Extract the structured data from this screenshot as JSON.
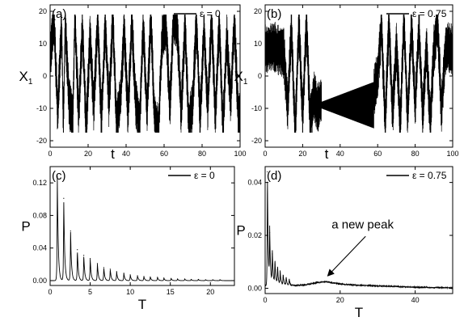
{
  "chart_data": [
    {
      "panel_label": "(a)",
      "type": "line",
      "xlabel": "t",
      "ylabel": "X",
      "ylabel_sub": "1",
      "xlim": [
        0,
        100
      ],
      "ylim": [
        -22,
        22
      ],
      "xticks": [
        0,
        20,
        40,
        60,
        80,
        100
      ],
      "yticks": [
        -20,
        -10,
        0,
        10,
        20
      ],
      "legend": {
        "label": "ε = 0",
        "position": "top-right"
      },
      "series": [
        {
          "description_values": "chaotic switching between upper (~+15) and lower (~-8) wings",
          "x": [
            0,
            2,
            4,
            6,
            7,
            8,
            10,
            12,
            13,
            15,
            17,
            19,
            21,
            23,
            25,
            27,
            29,
            31,
            33,
            35,
            37,
            39,
            41,
            43,
            45,
            47,
            49,
            51,
            53,
            55,
            57,
            59,
            61,
            63,
            65,
            67,
            69,
            71,
            73,
            75,
            77,
            79,
            81,
            83,
            85,
            87,
            89,
            91,
            93,
            95,
            97,
            99,
            100
          ],
          "y": [
            5,
            18,
            -12,
            16,
            -15,
            17,
            -8,
            -14,
            18,
            -12,
            15,
            -16,
            12,
            -10,
            17,
            -14,
            16,
            -9,
            18,
            -15,
            -7,
            14,
            -12,
            17,
            -8,
            -16,
            15,
            -11,
            18,
            -13,
            -17,
            12,
            16,
            -10,
            18,
            14,
            -12,
            16,
            -15,
            -9,
            17,
            -14,
            15,
            -10,
            18,
            -13,
            16,
            -16,
            12,
            -8,
            17,
            -12,
            -14
          ]
        }
      ]
    },
    {
      "panel_label": "(b)",
      "type": "line",
      "xlabel": "t",
      "ylabel": "X",
      "ylabel_sub": "1",
      "xlim": [
        0,
        100
      ],
      "ylim": [
        -22,
        22
      ],
      "xticks": [
        0,
        20,
        40,
        60,
        80,
        100
      ],
      "yticks": [
        -20,
        -10,
        0,
        10,
        20
      ],
      "legend": {
        "label": "ε = 0.75",
        "position": "top-right"
      },
      "series": [
        {
          "x": [
            0,
            5,
            10,
            12,
            14,
            16,
            18,
            20,
            22,
            24,
            26,
            28,
            30,
            32,
            35,
            40,
            45,
            50,
            55,
            58,
            60,
            62,
            64,
            66,
            68,
            70,
            72,
            74,
            76,
            78,
            80,
            82,
            84,
            86,
            88,
            90,
            92,
            94,
            96,
            98,
            100
          ],
          "y": [
            8,
            9,
            7,
            -10,
            15,
            -18,
            16,
            -12,
            17,
            -14,
            -6,
            -10,
            -8,
            -9,
            -9,
            -9,
            -9,
            -8,
            -7,
            -5,
            0,
            15,
            -14,
            16,
            -12,
            10,
            -15,
            17,
            -13,
            16,
            -10,
            15,
            -12,
            9,
            -14,
            8,
            17,
            -11,
            8,
            9,
            8
          ]
        }
      ]
    },
    {
      "panel_label": "(c)",
      "type": "line",
      "xlabel": "T",
      "ylabel": "P",
      "xlim": [
        0,
        23
      ],
      "ylim": [
        -0.006,
        0.14
      ],
      "xticks": [
        0,
        5,
        10,
        15,
        20
      ],
      "yticks": [
        0.0,
        0.04,
        0.08,
        0.12
      ],
      "ytick_labels": [
        "0.00",
        "0.04",
        "0.08",
        "0.12"
      ],
      "legend": {
        "label": "ε = 0",
        "position": "top-right"
      },
      "peaks": {
        "x": [
          0.9,
          1.7,
          2.55,
          3.4,
          4.2,
          5.0,
          5.9,
          6.7,
          7.5,
          8.3,
          9.2,
          10.0,
          10.9,
          11.7,
          12.5,
          13.4,
          14.2,
          15.1,
          15.9,
          16.8,
          17.6,
          18.5,
          19.4,
          20.3,
          21.2
        ],
        "y": [
          0.128,
          0.101,
          0.061,
          0.038,
          0.031,
          0.027,
          0.021,
          0.016,
          0.014,
          0.011,
          0.009,
          0.007,
          0.006,
          0.005,
          0.0045,
          0.004,
          0.003,
          0.0025,
          0.002,
          0.002,
          0.0015,
          0.0015,
          0.001,
          0.001,
          0.001
        ]
      }
    },
    {
      "panel_label": "(d)",
      "type": "line",
      "xlabel": "T",
      "ylabel": "P",
      "xlim": [
        0,
        50
      ],
      "ylim": [
        -0.002,
        0.046
      ],
      "xticks": [
        0,
        20,
        40
      ],
      "yticks": [
        0.0,
        0.02,
        0.04
      ],
      "ytick_labels": [
        "0.00",
        "0.02",
        "0.04"
      ],
      "legend": {
        "label": "ε = 0.75",
        "position": "top-right"
      },
      "annotation": {
        "text": "a new peak",
        "x": 16,
        "y": 0.0025
      },
      "peaks": {
        "x": [
          0.6,
          1.2,
          1.9,
          2.6,
          3.3,
          4.0,
          4.8,
          5.6,
          6.4
        ],
        "y": [
          0.044,
          0.021,
          0.013,
          0.009,
          0.007,
          0.005,
          0.004,
          0.003,
          0.0025
        ]
      },
      "baseline": {
        "x": [
          0,
          2,
          4,
          6,
          8,
          10,
          12,
          14,
          16,
          18,
          20,
          24,
          28,
          32,
          36,
          40,
          44,
          48,
          50
        ],
        "y": [
          0.001,
          0.002,
          0.0015,
          0.0012,
          0.0011,
          0.0012,
          0.0016,
          0.0022,
          0.0025,
          0.0021,
          0.0016,
          0.0012,
          0.001,
          0.0008,
          0.0006,
          0.0004,
          0.0003,
          0.0002,
          0.0001
        ]
      }
    }
  ]
}
